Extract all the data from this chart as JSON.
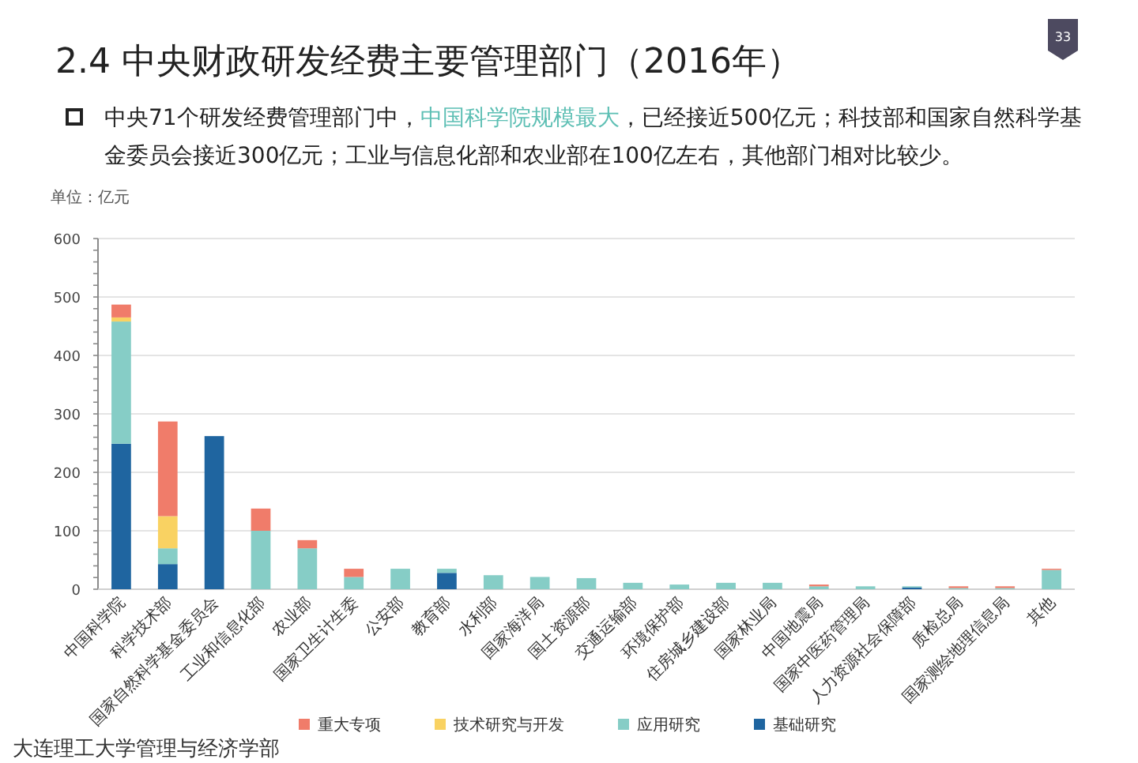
{
  "chart_data": {
    "type": "bar",
    "stacked": true,
    "title": "2.4 中央财政研发经费主要管理部门（2016年）",
    "subtitle": "中央71个研发经费管理部门中，**中国科学院规模最大**，已经接近500亿元；科技部和国家自然科学基金委员会接近300亿元；工业与信息化部和农业部在100亿左右，其他部门相对比较少。",
    "ylabel": "单位：亿元",
    "categories": [
      "中国科学院",
      "科学技术部",
      "国家自然科学基金委员会",
      "工业和信息化部",
      "农业部",
      "国家卫生计生委",
      "公安部",
      "教育部",
      "水利部",
      "国家海洋局",
      "国土资源部",
      "交通运输部",
      "环境保护部",
      "住房城乡建设部",
      "国家林业局",
      "中国地震局",
      "国家中医药管理局",
      "人力资源社会保障部",
      "质检总局",
      "国家测绘地理信息局",
      "其他"
    ],
    "series": [
      {
        "name": "基础研究",
        "color": "#1f65a0",
        "values": [
          249,
          43,
          262,
          null,
          null,
          null,
          null,
          28,
          null,
          null,
          null,
          null,
          null,
          null,
          null,
          null,
          null,
          3,
          null,
          null,
          null
        ]
      },
      {
        "name": "应用研究",
        "color": "#86cdc6",
        "values": [
          209,
          27,
          null,
          100,
          70,
          21,
          35,
          7,
          24,
          21,
          19,
          11,
          8,
          11,
          11,
          5,
          5,
          2,
          2,
          2,
          33
        ]
      },
      {
        "name": "技术研究与开发",
        "color": "#f9d262",
        "values": [
          7,
          55,
          null,
          null,
          null,
          null,
          null,
          null,
          null,
          null,
          null,
          null,
          null,
          null,
          null,
          null,
          null,
          null,
          null,
          null,
          null
        ]
      },
      {
        "name": "重大专项",
        "color": "#f07c6a",
        "values": [
          22,
          162,
          null,
          38,
          14,
          14,
          null,
          null,
          null,
          null,
          null,
          null,
          null,
          null,
          null,
          3,
          null,
          null,
          3,
          3,
          2
        ]
      }
    ],
    "ylim": [
      0,
      600
    ],
    "yticks": [
      0,
      100,
      200,
      300,
      400,
      500,
      600
    ],
    "grid": "y",
    "legend": "bottom",
    "annotations": [
      "大连理工大学管理与经济学部",
      "33"
    ]
  }
}
